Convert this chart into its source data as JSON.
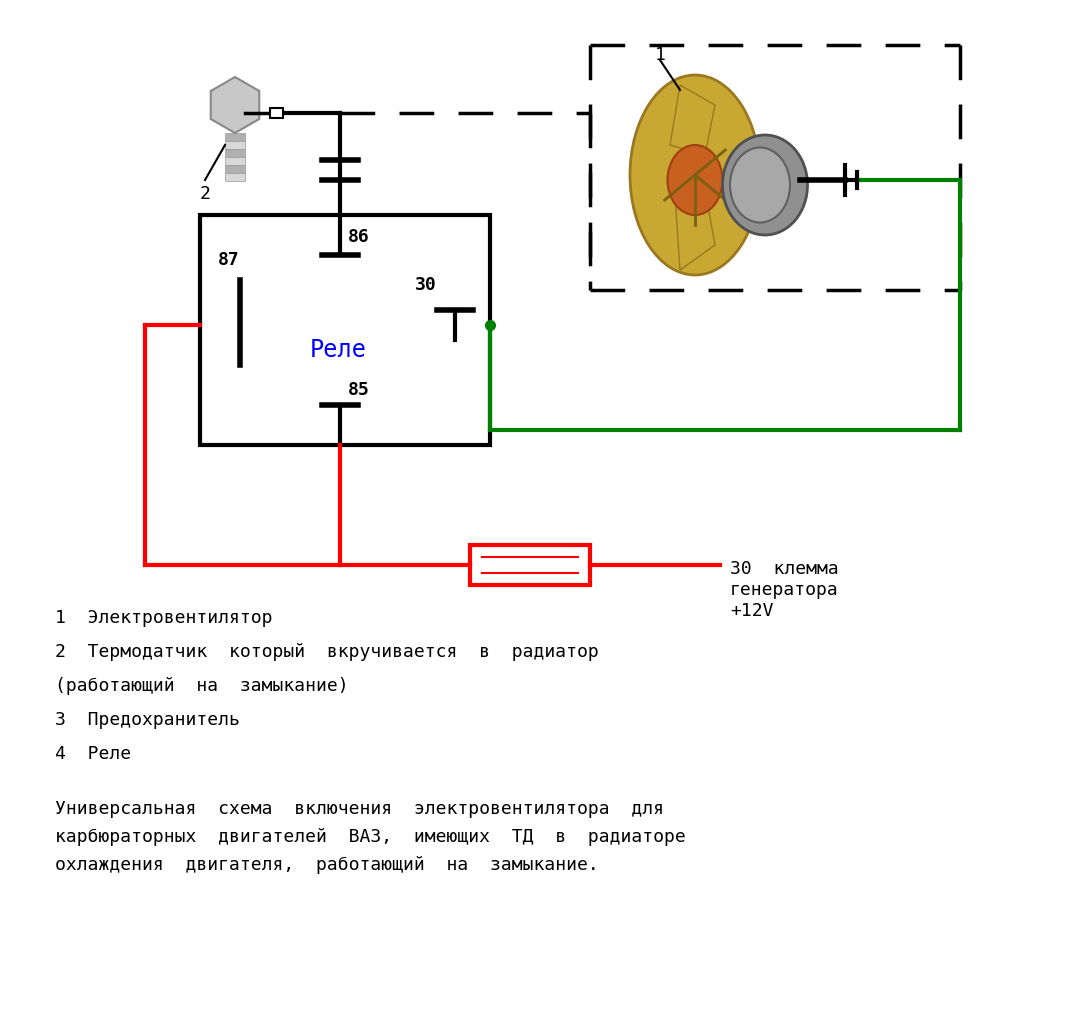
{
  "bg_color": "#ffffff",
  "legend_lines": [
    "1  Электровентилятор",
    "2  Термодатчик  который  вкручивается  в  радиатор",
    "(работающий  на  замыкание)",
    "3  Предохранитель",
    "4  Реле"
  ],
  "bottom_text": "Универсальная  схема  включения  электровентилятора  для\nкарбюраторных  двигателей  ВАЗ,  имеющих  ТД  в  радиаторе\nохлаждения  двигателя,  работающий  на  замыкание.",
  "relay_label": "Реле",
  "terminal_label": "30  клемма\nгенератора\n+12V",
  "label1": "1",
  "label2": "2"
}
